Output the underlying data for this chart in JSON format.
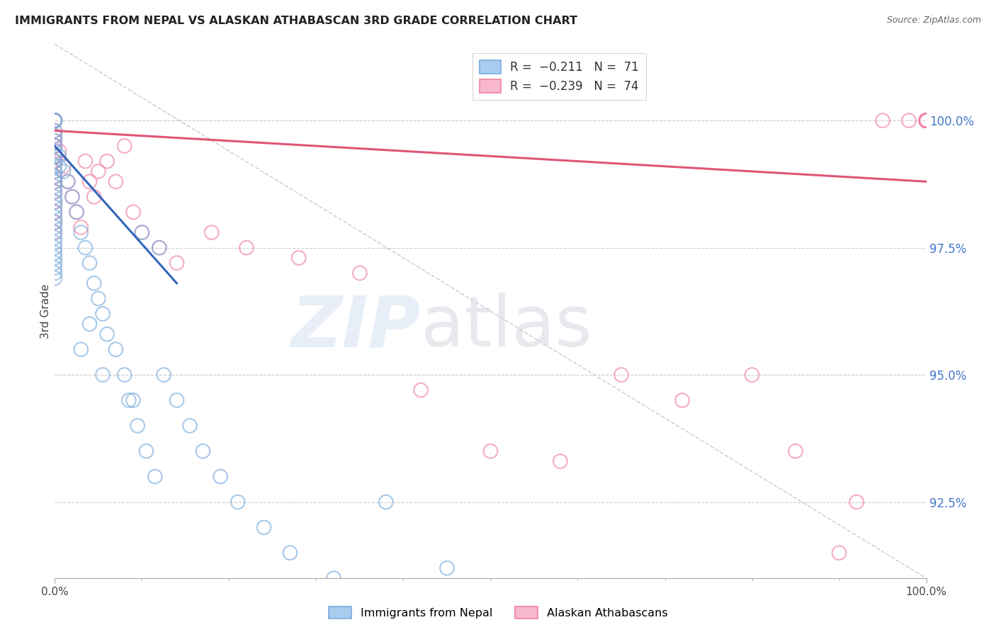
{
  "title": "IMMIGRANTS FROM NEPAL VS ALASKAN ATHABASCAN 3RD GRADE CORRELATION CHART",
  "source": "Source: ZipAtlas.com",
  "ylabel": "3rd Grade",
  "ylabel_right_labels": [
    "92.5%",
    "95.0%",
    "97.5%",
    "100.0%"
  ],
  "yticks": [
    92.5,
    95.0,
    97.5,
    100.0
  ],
  "xlim": [
    0.0,
    100.0
  ],
  "ylim": [
    91.0,
    101.5
  ],
  "background_color": "#ffffff",
  "grid_color": "#cccccc",
  "blue_color": "#7aacdc",
  "pink_color": "#f080a0",
  "blue_line_color": "#3366bb",
  "pink_line_color": "#e05575",
  "blue_scatter_x": [
    0.0,
    0.0,
    0.0,
    0.0,
    0.0,
    0.0,
    0.0,
    0.0,
    0.0,
    0.0,
    0.0,
    0.0,
    0.0,
    0.0,
    0.0,
    0.0,
    0.0,
    0.0,
    0.0,
    0.0,
    0.0,
    0.0,
    0.0,
    0.0,
    0.0,
    0.0,
    0.0,
    0.0,
    0.0,
    0.0,
    0.0,
    0.0,
    0.0,
    0.0,
    0.0,
    0.5,
    0.5,
    1.0,
    1.5,
    2.0,
    2.5,
    3.0,
    3.5,
    4.0,
    4.5,
    5.0,
    5.5,
    6.0,
    7.0,
    8.0,
    9.0,
    10.0,
    12.0,
    4.0,
    3.0,
    5.5,
    8.5,
    9.5,
    10.5,
    11.5,
    12.5,
    14.0,
    15.5,
    17.0,
    19.0,
    21.0,
    24.0,
    27.0,
    32.0,
    38.0,
    45.0
  ],
  "blue_scatter_y": [
    100.0,
    100.0,
    100.0,
    100.0,
    100.0,
    99.8,
    99.7,
    99.6,
    99.5,
    99.4,
    99.3,
    99.2,
    99.1,
    99.0,
    98.9,
    98.8,
    98.7,
    98.6,
    98.5,
    98.4,
    98.3,
    98.2,
    98.1,
    98.0,
    97.9,
    97.8,
    97.7,
    97.6,
    97.5,
    97.4,
    97.3,
    97.2,
    97.1,
    97.0,
    96.9,
    99.3,
    99.1,
    99.0,
    98.8,
    98.5,
    98.2,
    97.8,
    97.5,
    97.2,
    96.8,
    96.5,
    96.2,
    95.8,
    95.5,
    95.0,
    94.5,
    97.8,
    97.5,
    96.0,
    95.5,
    95.0,
    94.5,
    94.0,
    93.5,
    93.0,
    95.0,
    94.5,
    94.0,
    93.5,
    93.0,
    92.5,
    92.0,
    91.5,
    91.0,
    92.5,
    91.2
  ],
  "pink_scatter_x": [
    0.0,
    0.0,
    0.0,
    0.0,
    0.0,
    0.0,
    0.0,
    0.0,
    0.0,
    0.0,
    0.0,
    0.0,
    0.0,
    0.0,
    0.0,
    0.0,
    0.0,
    0.0,
    0.0,
    0.0,
    0.0,
    0.5,
    1.0,
    1.5,
    2.0,
    2.5,
    3.0,
    3.5,
    4.0,
    4.5,
    5.0,
    6.0,
    7.0,
    8.0,
    9.0,
    10.0,
    12.0,
    14.0,
    18.0,
    22.0,
    28.0,
    35.0,
    42.0,
    50.0,
    58.0,
    65.0,
    72.0,
    80.0,
    85.0,
    90.0,
    92.0,
    95.0,
    98.0,
    100.0,
    100.0,
    100.0,
    100.0,
    100.0,
    100.0,
    100.0,
    100.0,
    100.0,
    100.0,
    100.0,
    100.0,
    100.0,
    100.0,
    100.0,
    100.0,
    100.0,
    100.0,
    100.0,
    100.0,
    100.0
  ],
  "pink_scatter_y": [
    100.0,
    100.0,
    100.0,
    100.0,
    100.0,
    100.0,
    99.8,
    99.6,
    99.5,
    99.3,
    99.0,
    98.8,
    98.6,
    98.4,
    98.2,
    98.0,
    97.8,
    99.7,
    99.5,
    99.2,
    98.9,
    99.4,
    99.1,
    98.8,
    98.5,
    98.2,
    97.9,
    99.2,
    98.8,
    98.5,
    99.0,
    99.2,
    98.8,
    99.5,
    98.2,
    97.8,
    97.5,
    97.2,
    97.8,
    97.5,
    97.3,
    97.0,
    94.7,
    93.5,
    93.3,
    95.0,
    94.5,
    95.0,
    93.5,
    91.5,
    92.5,
    100.0,
    100.0,
    100.0,
    100.0,
    100.0,
    100.0,
    100.0,
    100.0,
    100.0,
    100.0,
    100.0,
    100.0,
    100.0,
    100.0,
    100.0,
    100.0,
    100.0,
    100.0,
    100.0,
    100.0,
    100.0,
    100.0,
    100.0
  ],
  "blue_reg_x0": 0.0,
  "blue_reg_x1": 14.0,
  "blue_reg_y0": 99.5,
  "blue_reg_y1": 96.8,
  "pink_reg_x0": 0.0,
  "pink_reg_x1": 100.0,
  "pink_reg_y0": 99.8,
  "pink_reg_y1": 98.8,
  "diag_x0": 0.0,
  "diag_x1": 100.0,
  "diag_y0": 101.5,
  "diag_y1": 91.0
}
